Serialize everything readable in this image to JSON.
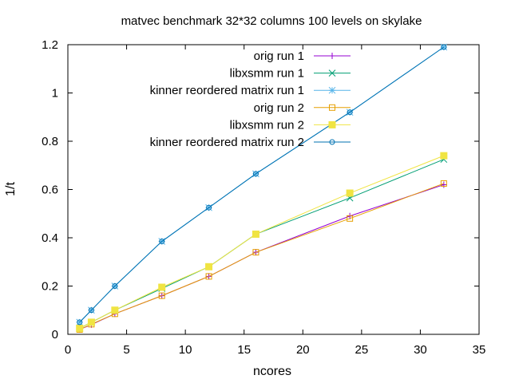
{
  "chart_data": {
    "type": "line",
    "title": "matvec benchmark 32*32 columns 100 levels on skylake",
    "xlabel": "ncores",
    "ylabel": "1/t",
    "xlim": [
      0,
      35
    ],
    "ylim": [
      0,
      1.2
    ],
    "xticks": [
      "0",
      "5",
      "10",
      "15",
      "20",
      "25",
      "30",
      "35"
    ],
    "yticks": [
      "0",
      "0.2",
      "0.4",
      "0.6",
      "0.8",
      "1",
      "1.2"
    ],
    "legend_position": "top-right",
    "series": [
      {
        "name": "orig run 1",
        "color": "#9400d3",
        "marker": "plus",
        "x": [
          1,
          2,
          4,
          8,
          12,
          16,
          24,
          32
        ],
        "y": [
          0.02,
          0.04,
          0.085,
          0.16,
          0.24,
          0.34,
          0.49,
          0.62
        ]
      },
      {
        "name": "libxsmm run 1",
        "color": "#009e73",
        "marker": "cross",
        "x": [
          1,
          2,
          4,
          8,
          12,
          16,
          24,
          32
        ],
        "y": [
          0.025,
          0.05,
          0.1,
          0.19,
          0.28,
          0.415,
          0.565,
          0.725
        ]
      },
      {
        "name": "kinner reordered matrix run 1",
        "color": "#56b4e9",
        "marker": "star",
        "x": [
          1,
          2,
          4,
          8,
          12,
          16,
          24,
          32
        ],
        "y": [
          0.05,
          0.1,
          0.2,
          0.385,
          0.525,
          0.665,
          0.92,
          1.19
        ]
      },
      {
        "name": "orig run 2",
        "color": "#e69f00",
        "marker": "open-square",
        "x": [
          1,
          2,
          4,
          8,
          12,
          16,
          24,
          32
        ],
        "y": [
          0.02,
          0.042,
          0.085,
          0.16,
          0.24,
          0.34,
          0.48,
          0.625
        ]
      },
      {
        "name": "libxsmm run 2",
        "color": "#f0e442",
        "marker": "filled-square",
        "x": [
          1,
          2,
          4,
          8,
          12,
          16,
          24,
          32
        ],
        "y": [
          0.025,
          0.05,
          0.1,
          0.195,
          0.28,
          0.415,
          0.585,
          0.74
        ]
      },
      {
        "name": "kinner reordered matrix run 2",
        "color": "#0072b2",
        "marker": "open-circle",
        "x": [
          1,
          2,
          4,
          8,
          12,
          16,
          24,
          32
        ],
        "y": [
          0.05,
          0.1,
          0.2,
          0.385,
          0.525,
          0.665,
          0.92,
          1.19
        ]
      }
    ]
  }
}
